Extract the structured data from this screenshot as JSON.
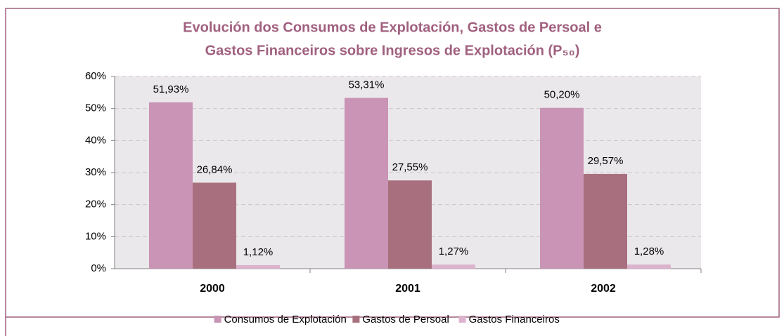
{
  "chart_data": {
    "type": "bar",
    "title": [
      "Evolución dos Consumos de Explotación, Gastos de Persoal e",
      "Gastos Financeiros sobre Ingresos de Explotación (P₅₀)"
    ],
    "categories": [
      "2000",
      "2001",
      "2002"
    ],
    "series": [
      {
        "name": "Consumos de Explotación",
        "color": "#c994b5",
        "values": [
          51.93,
          53.31,
          50.2
        ],
        "value_labels": [
          "51,93%",
          "53,31%",
          "50,20%"
        ]
      },
      {
        "name": "Gastos de Persoal",
        "color": "#a8707e",
        "values": [
          26.84,
          27.55,
          29.57
        ],
        "value_labels": [
          "26,84%",
          "27,55%",
          "29,57%"
        ]
      },
      {
        "name": "Gastos Financeiros",
        "color": "#dcb3cc",
        "values": [
          1.12,
          1.27,
          1.28
        ],
        "value_labels": [
          "1,12%",
          "1,27%",
          "1,28%"
        ]
      }
    ],
    "ylim": [
      0,
      60
    ],
    "yticks": [
      {
        "value": 0,
        "label": "0%"
      },
      {
        "value": 10,
        "label": "10%"
      },
      {
        "value": 20,
        "label": "20%"
      },
      {
        "value": 30,
        "label": "30%"
      },
      {
        "value": 40,
        "label": "40%"
      },
      {
        "value": 50,
        "label": "50%"
      },
      {
        "value": 60,
        "label": "60%"
      }
    ],
    "grid": true,
    "legend": "bottom"
  }
}
